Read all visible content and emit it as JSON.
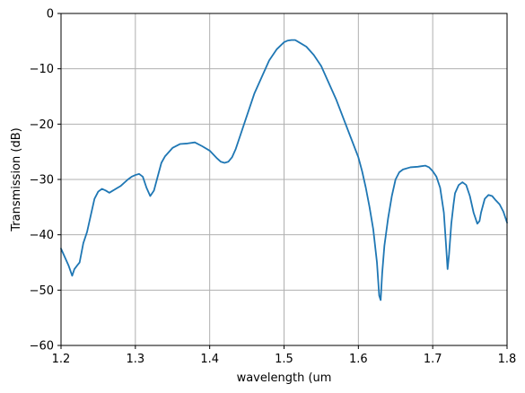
{
  "chart_data": {
    "type": "line",
    "xlabel": "wavelength (um",
    "ylabel": "Transmission (dB)",
    "xlim": [
      1.2,
      1.8
    ],
    "ylim": [
      -60,
      0
    ],
    "x_ticks": [
      "1.2",
      "1.3",
      "1.4",
      "1.5",
      "1.6",
      "1.7",
      "1.8"
    ],
    "y_ticks": [
      "0",
      "−10",
      "−20",
      "−30",
      "−40",
      "−50",
      "−60"
    ],
    "grid": true,
    "line_color": "#1f77b4",
    "series": [
      {
        "x": [
          1.2,
          1.205,
          1.21,
          1.215,
          1.218,
          1.222,
          1.225,
          1.23,
          1.235,
          1.24,
          1.245,
          1.25,
          1.255,
          1.26,
          1.265,
          1.27,
          1.28,
          1.29,
          1.295,
          1.3,
          1.305,
          1.31,
          1.315,
          1.32,
          1.325,
          1.33,
          1.335,
          1.34,
          1.35,
          1.36,
          1.37,
          1.38,
          1.39,
          1.4,
          1.405,
          1.41,
          1.415,
          1.42,
          1.425,
          1.43,
          1.435,
          1.44,
          1.45,
          1.46,
          1.47,
          1.48,
          1.49,
          1.5,
          1.505,
          1.51,
          1.515,
          1.52,
          1.53,
          1.54,
          1.55,
          1.56,
          1.57,
          1.58,
          1.59,
          1.6,
          1.605,
          1.61,
          1.615,
          1.62,
          1.625,
          1.628,
          1.63,
          1.632,
          1.635,
          1.64,
          1.645,
          1.65,
          1.655,
          1.66,
          1.67,
          1.68,
          1.685,
          1.69,
          1.695,
          1.7,
          1.705,
          1.71,
          1.715,
          1.718,
          1.72,
          1.722,
          1.725,
          1.728,
          1.73,
          1.735,
          1.74,
          1.745,
          1.75,
          1.755,
          1.76,
          1.763,
          1.765,
          1.768,
          1.77,
          1.775,
          1.78,
          1.785,
          1.79,
          1.795,
          1.8
        ],
        "y": [
          -42.5,
          -44.0,
          -45.5,
          -47.4,
          -46.2,
          -45.5,
          -45.0,
          -41.5,
          -39.5,
          -36.5,
          -33.5,
          -32.2,
          -31.7,
          -32.0,
          -32.4,
          -32.0,
          -31.2,
          -30.0,
          -29.5,
          -29.2,
          -29.0,
          -29.5,
          -31.5,
          -33.0,
          -32.0,
          -29.5,
          -27.0,
          -25.8,
          -24.3,
          -23.6,
          -23.5,
          -23.3,
          -24.0,
          -24.8,
          -25.5,
          -26.2,
          -26.8,
          -27.0,
          -26.8,
          -26.0,
          -24.5,
          -22.5,
          -18.5,
          -14.5,
          -11.5,
          -8.5,
          -6.5,
          -5.2,
          -4.9,
          -4.8,
          -4.8,
          -5.2,
          -6.0,
          -7.5,
          -9.5,
          -12.5,
          -15.5,
          -19.0,
          -22.5,
          -26.0,
          -28.5,
          -31.5,
          -35.0,
          -39.0,
          -45.0,
          -51.0,
          -51.8,
          -47.0,
          -42.0,
          -37.0,
          -33.0,
          -30.0,
          -28.7,
          -28.2,
          -27.8,
          -27.7,
          -27.6,
          -27.5,
          -27.8,
          -28.5,
          -29.5,
          -31.5,
          -36.0,
          -42.0,
          -46.2,
          -43.5,
          -38.0,
          -34.5,
          -32.5,
          -31.0,
          -30.5,
          -31.0,
          -33.0,
          -36.0,
          -38.0,
          -37.5,
          -36.0,
          -34.5,
          -33.5,
          -32.8,
          -33.0,
          -33.8,
          -34.5,
          -35.8,
          -37.8
        ]
      }
    ]
  }
}
